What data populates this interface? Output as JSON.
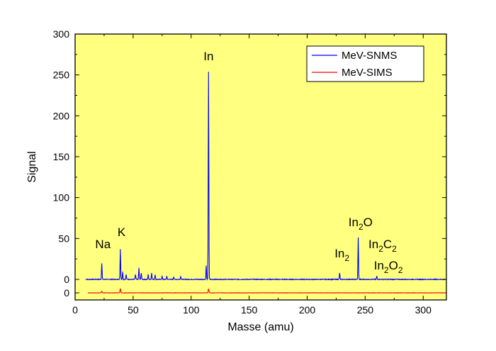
{
  "chart_data": {
    "type": "line",
    "title": "",
    "xlabel": "Masse (amu)",
    "ylabel": "Signal",
    "xlim": [
      0,
      320
    ],
    "ylim": [
      0,
      300
    ],
    "x_ticks": [
      "0",
      "50",
      "100",
      "150",
      "200",
      "250",
      "300"
    ],
    "y_ticks": [
      "0",
      "50",
      "100",
      "150",
      "200",
      "250",
      "300"
    ],
    "secondary_y_ticks": [
      "0"
    ],
    "background_color": "#FFFF80",
    "grid": false,
    "legend": {
      "placement": "top-right"
    },
    "series": [
      {
        "name": "MeV-SNMS",
        "color": "#0000FF",
        "peaks": [
          {
            "x": 23,
            "y": 20
          },
          {
            "x": 39,
            "y": 37
          },
          {
            "x": 41,
            "y": 9
          },
          {
            "x": 44,
            "y": 6
          },
          {
            "x": 52,
            "y": 6
          },
          {
            "x": 55,
            "y": 14
          },
          {
            "x": 57,
            "y": 8
          },
          {
            "x": 63,
            "y": 6
          },
          {
            "x": 66,
            "y": 8
          },
          {
            "x": 69,
            "y": 6
          },
          {
            "x": 75,
            "y": 4
          },
          {
            "x": 79,
            "y": 4
          },
          {
            "x": 85,
            "y": 3
          },
          {
            "x": 91,
            "y": 4
          },
          {
            "x": 113,
            "y": 17
          },
          {
            "x": 115,
            "y": 254
          },
          {
            "x": 228,
            "y": 8
          },
          {
            "x": 244,
            "y": 51
          },
          {
            "x": 260,
            "y": 4
          }
        ]
      },
      {
        "name": "MeV-SIMS",
        "color": "#FF0000",
        "peaks": [
          {
            "x": 23,
            "y": 2
          },
          {
            "x": 39,
            "y": 5
          },
          {
            "x": 115,
            "y": 5
          }
        ]
      }
    ],
    "annotations": [
      {
        "text": "Na",
        "x": 24,
        "y": 38
      },
      {
        "text": "K",
        "x": 40,
        "y": 53
      },
      {
        "text": "In",
        "x": 115,
        "y": 268
      },
      {
        "text": "In",
        "sub": "2",
        "x": 230,
        "y": 27
      },
      {
        "text": "In",
        "sub": "2",
        "tail": "O",
        "x": 246,
        "y": 65
      },
      {
        "text": "In",
        "sub": "2",
        "tail": "C",
        "sub2": "2",
        "x": 265,
        "y": 38
      },
      {
        "text": "In",
        "sub": "2",
        "tail": "O",
        "sub2": "2",
        "x": 270,
        "y": 12
      }
    ]
  }
}
